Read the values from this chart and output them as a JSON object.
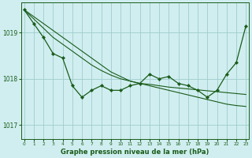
{
  "xlabel": "Graphe pression niveau de la mer (hPa)",
  "bg_color": "#d0eef0",
  "grid_color": "#a0cccc",
  "line_color": "#1a5c1a",
  "ylim": [
    1016.7,
    1019.65
  ],
  "xlim": [
    -0.3,
    23.3
  ],
  "yticks": [
    1017,
    1018,
    1019
  ],
  "xticks": [
    0,
    1,
    2,
    3,
    4,
    5,
    6,
    7,
    8,
    9,
    10,
    11,
    12,
    13,
    14,
    15,
    16,
    17,
    18,
    19,
    20,
    21,
    22,
    23
  ],
  "series_jagged": [
    1019.5,
    1019.2,
    1018.9,
    1018.55,
    1018.45,
    1017.85,
    1017.6,
    1017.75,
    1017.85,
    1017.75,
    1017.75,
    1017.85,
    1017.9,
    1018.1,
    1018.0,
    1018.05,
    1017.9,
    1017.85,
    1017.75,
    1017.6,
    1017.75,
    1018.1,
    1018.35,
    1019.15
  ],
  "series_straight1": [
    1019.5,
    1019.35,
    1019.2,
    1019.05,
    1018.9,
    1018.75,
    1018.6,
    1018.45,
    1018.3,
    1018.15,
    1018.05,
    1017.95,
    1017.9,
    1017.85,
    1017.8,
    1017.75,
    1017.7,
    1017.65,
    1017.6,
    1017.55,
    1017.5,
    1017.45,
    1017.42,
    1017.4
  ],
  "series_straight2": [
    1019.5,
    1019.3,
    1019.1,
    1018.9,
    1018.75,
    1018.6,
    1018.45,
    1018.3,
    1018.18,
    1018.08,
    1018.0,
    1017.95,
    1017.9,
    1017.88,
    1017.85,
    1017.82,
    1017.8,
    1017.78,
    1017.76,
    1017.74,
    1017.72,
    1017.7,
    1017.68,
    1017.66
  ]
}
